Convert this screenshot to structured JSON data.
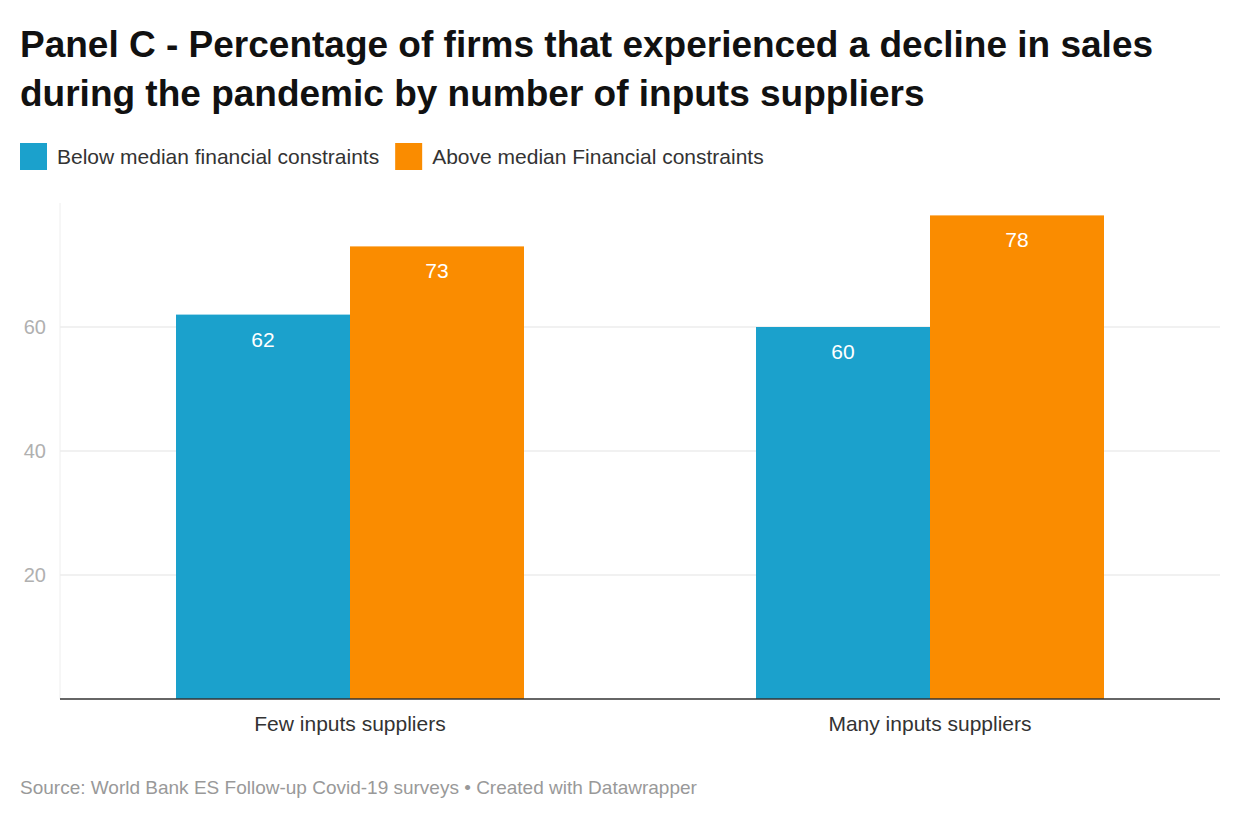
{
  "chart_data": {
    "type": "bar",
    "title": "Panel C - Percentage of firms that experienced a decline in sales during the pandemic by number of inputs suppliers",
    "source": "Source: World Bank ES Follow-up Covid-19 surveys • Created with Datawrapper",
    "categories": [
      "Few inputs suppliers",
      "Many inputs suppliers"
    ],
    "series": [
      {
        "name": "Below median financial constraints",
        "color": "#1ba1cc",
        "values": [
          62,
          60
        ]
      },
      {
        "name": "Above median Financial constraints",
        "color": "#fa8c00",
        "values": [
          73,
          78
        ]
      }
    ],
    "ylim": [
      0,
      80
    ],
    "yticks": [
      20,
      40,
      60
    ],
    "grid": true,
    "legend": "top-left",
    "data_labels": true
  }
}
